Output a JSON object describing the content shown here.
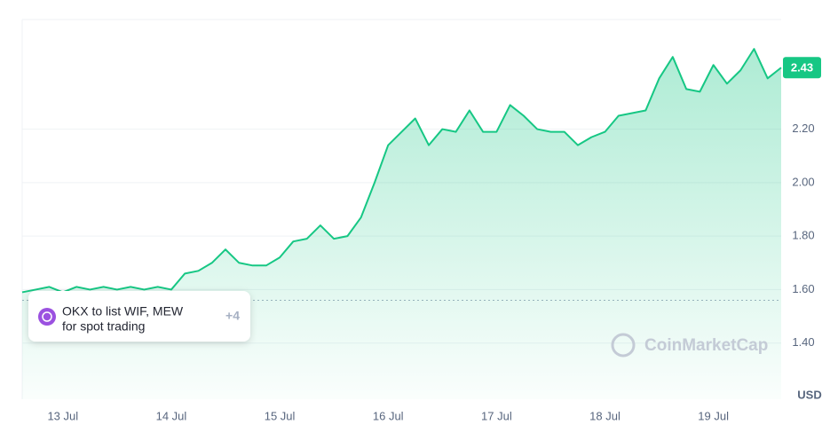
{
  "chart_data": {
    "type": "line",
    "color": "#16c784",
    "categories": [
      null,
      null,
      null,
      "13 Jul",
      null,
      null,
      null,
      null,
      null,
      null,
      null,
      "14 Jul",
      null,
      null,
      null,
      null,
      null,
      null,
      null,
      "15 Jul",
      null,
      null,
      null,
      null,
      null,
      null,
      null,
      "16 Jul",
      null,
      null,
      null,
      null,
      null,
      null,
      null,
      "17 Jul",
      null,
      null,
      null,
      null,
      null,
      null,
      null,
      "18 Jul",
      null,
      null,
      null,
      null,
      null,
      null,
      null,
      "19 Jul",
      null,
      null,
      null,
      null,
      null
    ],
    "values": [
      1.59,
      1.6,
      1.61,
      1.59,
      1.61,
      1.6,
      1.61,
      1.6,
      1.61,
      1.6,
      1.61,
      1.6,
      1.66,
      1.67,
      1.7,
      1.75,
      1.7,
      1.69,
      1.69,
      1.72,
      1.78,
      1.79,
      1.84,
      1.79,
      1.8,
      1.87,
      2.0,
      2.14,
      2.19,
      2.24,
      2.14,
      2.2,
      2.19,
      2.27,
      2.19,
      2.19,
      2.29,
      2.25,
      2.2,
      2.19,
      2.19,
      2.14,
      2.17,
      2.19,
      2.25,
      2.26,
      2.27,
      2.39,
      2.47,
      2.35,
      2.34,
      2.44,
      2.37,
      2.42,
      2.5,
      2.39,
      2.43
    ],
    "reference_line": 1.56,
    "ylim": [
      1.19,
      2.61
    ],
    "yticks": [
      {
        "value": 1.4,
        "label": "1.40"
      },
      {
        "value": 1.6,
        "label": "1.60"
      },
      {
        "value": 1.8,
        "label": "1.80"
      },
      {
        "value": 2.0,
        "label": "2.00"
      },
      {
        "value": 2.2,
        "label": "2.20"
      }
    ],
    "grid": true,
    "y_unit": "USD"
  },
  "annotation": {
    "lines": [
      "OKX to list WIF, MEW",
      "for spot trading"
    ],
    "more": "+4"
  },
  "watermark": "CoinMarketCap"
}
